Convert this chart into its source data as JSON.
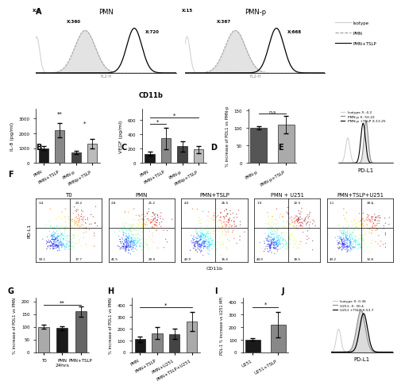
{
  "panel_A": {
    "title_pmn": "PMN",
    "title_pmnp": "PMN-p",
    "legend": [
      "Isotype",
      "PMN",
      "PMN+TSLP"
    ],
    "pmn_labels": [
      "X:7",
      "X:360",
      "X:720"
    ],
    "pmnp_labels": [
      "X:15",
      "X:367",
      "X:668"
    ],
    "xlabel": "CD11b"
  },
  "panel_B": {
    "ylabel": "IL-8 (pg/ml)",
    "categories": [
      "PMN",
      "PMN+TSLP",
      "PMN-p",
      "PMNp+TSLP"
    ],
    "values": [
      1000,
      2200,
      700,
      1300
    ],
    "errors": [
      150,
      500,
      100,
      300
    ],
    "colors": [
      "#1a1a1a",
      "#888888",
      "#444444",
      "#bbbbbb"
    ],
    "sig_pos": [
      [
        1,
        0.88,
        "**"
      ],
      [
        2,
        0.65,
        "*"
      ]
    ]
  },
  "panel_C": {
    "ylabel": "VEGF (pg/ml)",
    "categories": [
      "PMN",
      "PMN+TSLP",
      "PMN-p",
      "PMNp+TSLP"
    ],
    "values": [
      130,
      340,
      230,
      190
    ],
    "errors": [
      30,
      150,
      70,
      50
    ],
    "colors": [
      "#1a1a1a",
      "#888888",
      "#444444",
      "#bbbbbb"
    ],
    "bracket1": [
      0,
      1,
      "*"
    ],
    "bracket2": [
      0,
      3,
      "*"
    ]
  },
  "panel_D": {
    "ylabel": "% increase of PDL1 vs PMN-p",
    "categories": [
      "PMN-p",
      "PMN-p+TSLP"
    ],
    "values": [
      100,
      110
    ],
    "errors": [
      5,
      25
    ],
    "colors": [
      "#555555",
      "#aaaaaa"
    ],
    "sig": "n.s",
    "ylim": [
      0,
      150
    ]
  },
  "panel_E": {
    "legend": [
      "Isotype X: 4.2",
      "PMN-p X: 50.22",
      "PMN-p +TSLP X:13.25"
    ]
  },
  "panel_F": {
    "titles": [
      "T0",
      "PMN",
      "PMN+TSLP",
      "PMN + U251",
      "PMN+TSLP+U251"
    ],
    "xlabel": "CD11b",
    "ylabel": "PD-L1"
  },
  "panel_G": {
    "ylabel": "% increase of PDL1 vs PMN",
    "categories": [
      "T0",
      "PMN",
      "PMN+TSLP"
    ],
    "values": [
      100,
      95,
      160
    ],
    "errors": [
      8,
      8,
      20
    ],
    "colors": [
      "#aaaaaa",
      "#1a1a1a",
      "#666666"
    ],
    "sig": "**",
    "xlabel": "24hrs"
  },
  "panel_H": {
    "ylabel": "% increase of PDL1 vs PMN",
    "categories": [
      "PMN",
      "PMN+TSLP",
      "PMN+U251",
      "PMN+TSLP+U251"
    ],
    "values": [
      110,
      160,
      155,
      260
    ],
    "errors": [
      25,
      50,
      45,
      80
    ],
    "colors": [
      "#1a1a1a",
      "#888888",
      "#444444",
      "#aaaaaa"
    ],
    "sig": "*"
  },
  "panel_I": {
    "ylabel": "PDL-1 % increase vs U251 MFI",
    "categories": [
      "U251",
      "U251+TSLP"
    ],
    "values": [
      100,
      220
    ],
    "errors": [
      10,
      100
    ],
    "colors": [
      "#1a1a1a",
      "#888888"
    ],
    "sig": "*"
  },
  "panel_J": {
    "legend": [
      "Isotype X: 0.36",
      "U251: X: 30.4",
      "U251 +TSLP X:53.7"
    ]
  },
  "bg_color": "#ffffff"
}
